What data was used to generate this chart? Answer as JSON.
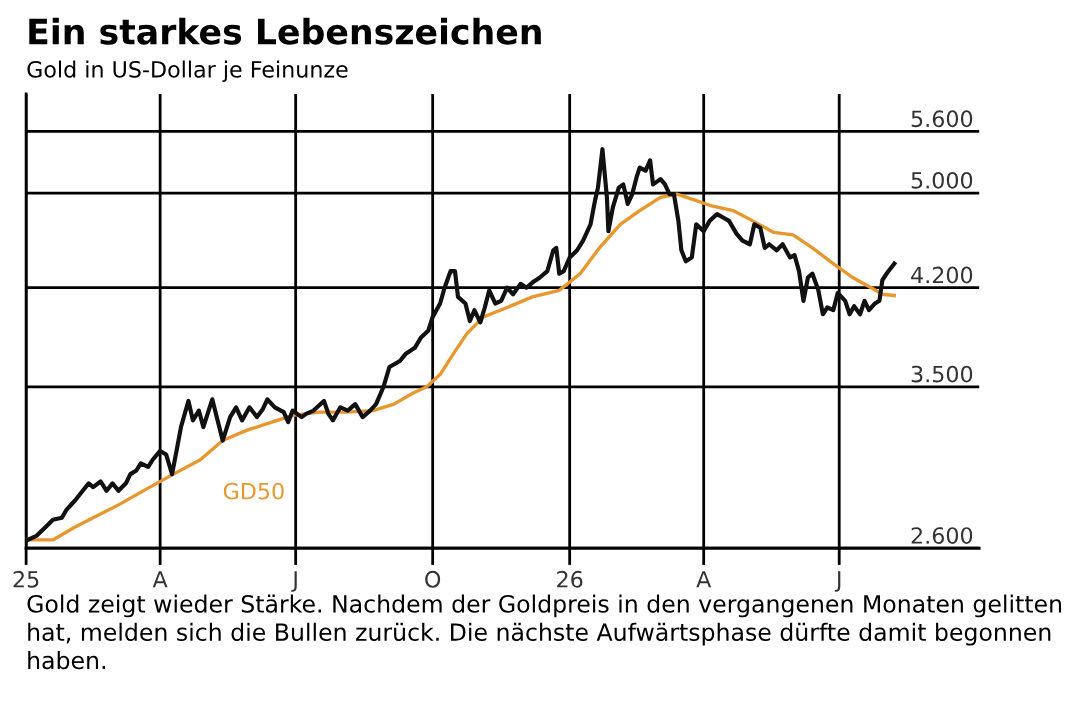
{
  "chart_data": {
    "type": "line",
    "title": "Ein starkes Lebenszeichen",
    "subtitle": "Gold in US-Dollar je Feinunze",
    "annotations": [
      "Gold zeigt wieder Stärke. Nachdem der Goldpreis in den vergangenen Monaten gelitten hat, melden sich die Bullen zurück. Die nächste Aufwärtsphase dürfte damit begonnen haben."
    ],
    "series": [
      {
        "color": "#111111",
        "x": [
          "2025-01-02",
          "2025-01-08",
          "2025-01-15",
          "2025-01-19",
          "2025-01-25",
          "2025-01-28",
          "2025-02-03",
          "2025-02-08",
          "2025-02-12",
          "2025-02-15",
          "2025-02-20",
          "2025-02-24",
          "2025-02-28",
          "2025-03-04",
          "2025-03-09",
          "2025-03-12",
          "2025-03-16",
          "2025-03-19",
          "2025-03-24",
          "2025-03-27",
          "2025-04-01",
          "2025-04-05",
          "2025-04-09",
          "2025-04-12",
          "2025-04-15",
          "2025-04-20",
          "2025-04-23",
          "2025-04-27",
          "2025-04-30",
          "2025-05-06",
          "2025-05-09",
          "2025-05-13",
          "2025-05-18",
          "2025-05-22",
          "2025-05-26",
          "2025-05-31",
          "2025-06-05",
          "2025-06-09",
          "2025-06-12",
          "2025-06-17",
          "2025-06-23",
          "2025-06-26",
          "2025-06-29",
          "2025-07-05",
          "2025-07-08",
          "2025-07-13",
          "2025-07-20",
          "2025-07-23",
          "2025-07-26",
          "2025-07-31",
          "2025-08-05",
          "2025-08-10",
          "2025-08-15",
          "2025-08-20",
          "2025-08-24",
          "2025-08-29",
          "2025-09-02",
          "2025-09-09",
          "2025-09-13",
          "2025-09-19",
          "2025-09-23",
          "2025-09-28",
          "2025-10-01",
          "2025-10-06",
          "2025-10-09",
          "2025-10-13",
          "2025-10-16",
          "2025-10-18",
          "2025-10-23",
          "2025-10-26",
          "2025-10-29",
          "2025-11-02",
          "2025-11-05",
          "2025-11-08",
          "2025-11-12",
          "2025-11-16",
          "2025-11-20",
          "2025-11-24",
          "2025-11-29",
          "2025-12-03",
          "2025-12-07",
          "2025-12-12",
          "2025-12-17",
          "2025-12-21",
          "2025-12-23",
          "2025-12-25",
          "2025-12-28",
          "2026-01-01",
          "2026-01-06",
          "2026-01-10",
          "2026-01-15",
          "2026-01-18",
          "2026-01-20",
          "2026-01-23",
          "2026-01-26",
          "2026-01-27",
          "2026-01-30",
          "2026-02-03",
          "2026-02-06",
          "2026-02-09",
          "2026-02-12",
          "2026-02-15",
          "2026-02-17",
          "2026-02-21",
          "2026-02-24",
          "2026-02-26",
          "2026-03-03",
          "2026-03-06",
          "2026-03-09",
          "2026-03-12",
          "2026-03-15",
          "2026-03-17",
          "2026-03-20",
          "2026-03-24",
          "2026-03-27",
          "2026-04-01",
          "2026-04-05",
          "2026-04-10",
          "2026-04-14",
          "2026-04-18",
          "2026-04-23",
          "2026-04-27",
          "2026-05-02",
          "2026-05-05",
          "2026-05-09",
          "2026-05-12",
          "2026-05-15",
          "2026-05-20",
          "2026-05-24",
          "2026-05-29",
          "2026-06-01",
          "2026-06-04",
          "2026-06-07",
          "2026-06-10",
          "2026-06-13",
          "2026-06-17",
          "2026-06-20",
          "2026-06-23",
          "2026-06-27",
          "2026-06-30",
          "2026-07-05",
          "2026-07-08",
          "2026-07-11",
          "2026-07-15",
          "2026-07-18",
          "2026-07-21",
          "2026-07-25",
          "2026-07-28",
          "2026-07-30",
          "2026-08-03",
          "2026-08-07"
        ],
        "values": [
          2640,
          2660,
          2710,
          2740,
          2750,
          2790,
          2840,
          2890,
          2930,
          2910,
          2940,
          2890,
          2930,
          2890,
          2930,
          2980,
          3000,
          3040,
          3020,
          3060,
          3110,
          3090,
          2980,
          3110,
          3250,
          3410,
          3290,
          3350,
          3250,
          3420,
          3310,
          3170,
          3310,
          3370,
          3290,
          3370,
          3310,
          3360,
          3420,
          3370,
          3340,
          3280,
          3350,
          3310,
          3330,
          3350,
          3410,
          3330,
          3290,
          3370,
          3350,
          3390,
          3310,
          3350,
          3390,
          3500,
          3630,
          3670,
          3720,
          3760,
          3830,
          3880,
          3980,
          4080,
          4200,
          4330,
          4330,
          4130,
          4080,
          3950,
          4030,
          3940,
          4050,
          4180,
          4080,
          4100,
          4200,
          4150,
          4230,
          4200,
          4240,
          4280,
          4330,
          4500,
          4520,
          4310,
          4330,
          4440,
          4500,
          4580,
          4720,
          4930,
          5050,
          5420,
          4960,
          4660,
          4870,
          5050,
          5080,
          4900,
          4990,
          5150,
          5240,
          5210,
          5310,
          5080,
          5130,
          5080,
          4990,
          4990,
          4750,
          4500,
          4410,
          4440,
          4720,
          4660,
          4750,
          4810,
          4780,
          4750,
          4640,
          4580,
          4550,
          4720,
          4690,
          4520,
          4550,
          4500,
          4550,
          4440,
          4460,
          4330,
          4100,
          4280,
          4310,
          4180,
          4000,
          4050,
          4030,
          4160,
          4100,
          4000,
          4060,
          4000,
          4100,
          4030,
          4080,
          4100,
          4260,
          4330,
          4390
        ]
      },
      {
        "name": "GD50",
        "color": "#e8972e",
        "x": [
          "2025-01-02",
          "2025-01-10",
          "2025-01-19",
          "2025-02-02",
          "2025-02-15",
          "2025-03-05",
          "2025-03-23",
          "2025-04-10",
          "2025-04-28",
          "2025-05-13",
          "2025-05-29",
          "2025-06-12",
          "2025-06-29",
          "2025-07-17",
          "2025-08-04",
          "2025-08-22",
          "2025-09-05",
          "2025-09-18",
          "2025-09-27",
          "2025-10-06",
          "2025-10-15",
          "2025-10-24",
          "2025-11-04",
          "2025-11-20",
          "2025-12-07",
          "2025-12-25",
          "2026-01-08",
          "2026-01-21",
          "2026-02-04",
          "2026-02-17",
          "2026-03-03",
          "2026-03-14",
          "2026-03-25",
          "2026-04-07",
          "2026-04-21",
          "2026-05-04",
          "2026-05-18",
          "2026-05-31",
          "2026-06-13",
          "2026-06-27",
          "2026-07-10",
          "2026-07-24",
          "2026-07-30",
          "2026-08-07"
        ],
        "values": [
          2640,
          2640,
          2640,
          2700,
          2750,
          2820,
          2900,
          2980,
          3060,
          3170,
          3230,
          3270,
          3320,
          3340,
          3340,
          3350,
          3390,
          3460,
          3500,
          3580,
          3720,
          3860,
          3980,
          4050,
          4130,
          4180,
          4310,
          4520,
          4720,
          4840,
          4960,
          4990,
          4940,
          4880,
          4840,
          4750,
          4650,
          4630,
          4520,
          4390,
          4280,
          4190,
          4150,
          4140
        ]
      }
    ],
    "xlim": [
      "2025-01-01",
      "2026-10-03"
    ],
    "xticks": [
      {
        "value": "2025-01-01",
        "label": "25"
      },
      {
        "value": "2025-04-01",
        "label": "A"
      },
      {
        "value": "2025-07-01",
        "label": "J"
      },
      {
        "value": "2025-10-01",
        "label": "O"
      },
      {
        "value": "2026-01-01",
        "label": "26"
      },
      {
        "value": "2026-04-01",
        "label": "A"
      },
      {
        "value": "2026-07-01",
        "label": "J"
      }
    ],
    "ylim": [
      2600,
      6000
    ],
    "yticks": [
      {
        "value": 2600,
        "label": "2.600"
      },
      {
        "value": 3500,
        "label": "3.500"
      },
      {
        "value": 4200,
        "label": "4.200"
      },
      {
        "value": 5000,
        "label": "5.000"
      },
      {
        "value": 5600,
        "label": "5.600"
      }
    ],
    "log": "y",
    "grid": true,
    "marker": "none",
    "line_style": "solid"
  }
}
